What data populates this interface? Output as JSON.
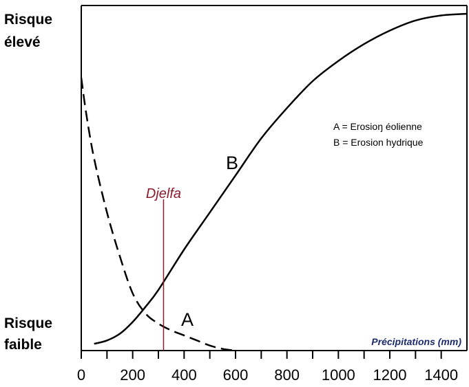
{
  "chart_data": {
    "type": "line",
    "title": "",
    "xlabel": "Précipitations (mm)",
    "ylabel_top": [
      "Risque",
      "élevé"
    ],
    "ylabel_bottom": [
      "Risque",
      "faible"
    ],
    "xlim": [
      0,
      1500
    ],
    "ylim": [
      0,
      1
    ],
    "x_ticks": [
      0,
      200,
      400,
      600,
      800,
      1000,
      1200,
      1400
    ],
    "x_tick_labels": [
      "0",
      "200",
      "400",
      "600",
      "800",
      "1000",
      "1200",
      "1400"
    ],
    "grid": false,
    "legend_position": "right",
    "legend": [
      "A = Erosioŋ éolienne",
      "B = Erosion hydrique"
    ],
    "series": [
      {
        "name": "A",
        "style": "dashed",
        "x": [
          0,
          20,
          50,
          100,
          150,
          200,
          250,
          300,
          350,
          400,
          450,
          500,
          550,
          600
        ],
        "y": [
          0.81,
          0.7,
          0.57,
          0.41,
          0.28,
          0.17,
          0.11,
          0.08,
          0.06,
          0.045,
          0.03,
          0.015,
          0.005,
          0.0
        ]
      },
      {
        "name": "B",
        "style": "solid",
        "x": [
          50,
          100,
          150,
          200,
          250,
          300,
          400,
          500,
          600,
          700,
          800,
          900,
          1000,
          1100,
          1200,
          1300,
          1400,
          1500
        ],
        "y": [
          0.02,
          0.03,
          0.05,
          0.085,
          0.13,
          0.18,
          0.3,
          0.41,
          0.52,
          0.63,
          0.72,
          0.8,
          0.86,
          0.91,
          0.95,
          0.98,
          0.995,
          1.0
        ]
      }
    ],
    "annotations": [
      {
        "text": "Djelfa",
        "x": 320
      },
      {
        "text": "A",
        "curve": "A"
      },
      {
        "text": "B",
        "curve": "B"
      }
    ]
  }
}
